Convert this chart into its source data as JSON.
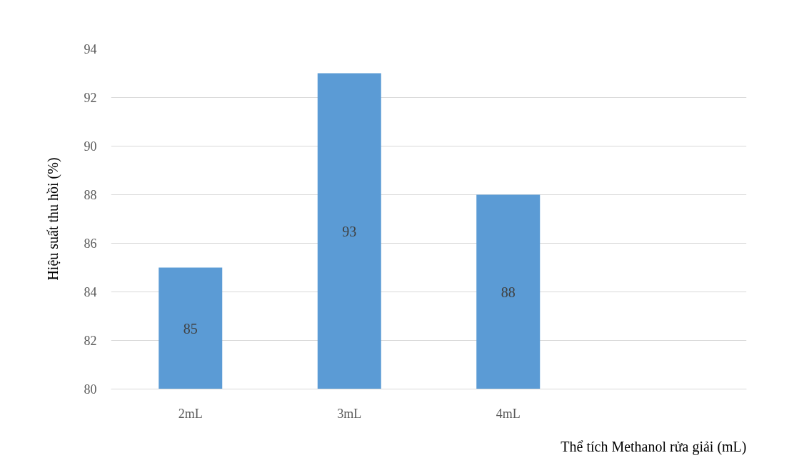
{
  "chart_data": {
    "type": "bar",
    "xlabel": "Thể tích Methanol rửa giải (mL)",
    "ylabel": "Hiệu suất thu hồi (%)",
    "categories": [
      "2mL",
      "3mL",
      "4mL",
      null
    ],
    "values": [
      85,
      93,
      88,
      null
    ],
    "color": "#5b9bd5",
    "ylim": [
      80,
      94
    ],
    "yticks": [
      80,
      82,
      84,
      86,
      88,
      90,
      92,
      94
    ],
    "grid": "y",
    "data_labels": true
  }
}
